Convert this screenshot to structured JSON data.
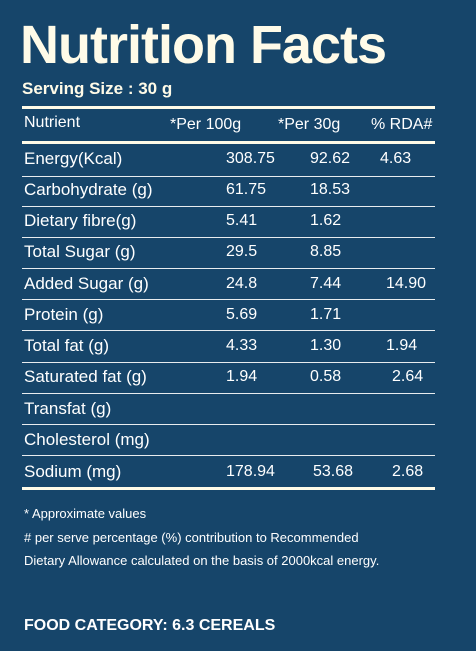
{
  "title": "Nutrition Facts",
  "serving_size": "Serving Size : 30 g",
  "table": {
    "headers": [
      "Nutrient",
      "*Per 100g",
      "*Per 30g",
      "% RDA#"
    ],
    "rows": [
      {
        "nutrient": "Energy(Kcal)",
        "per100": "308.75",
        "per30": "92.62",
        "rda": "4.63"
      },
      {
        "nutrient": "Carbohydrate (g)",
        "per100": "61.75",
        "per30": "18.53",
        "rda": ""
      },
      {
        "nutrient": "Dietary fibre(g)",
        "per100": "5.41",
        "per30": "1.62",
        "rda": ""
      },
      {
        "nutrient": "Total Sugar (g)",
        "per100": "29.5",
        "per30": "8.85",
        "rda": ""
      },
      {
        "nutrient": "Added Sugar (g)",
        "per100": "24.8",
        "per30": "7.44",
        "rda": "14.90"
      },
      {
        "nutrient": "Protein (g)",
        "per100": "5.69",
        "per30": "1.71",
        "rda": ""
      },
      {
        "nutrient": "Total fat (g)",
        "per100": "4.33",
        "per30": "1.30",
        "rda": "1.94"
      },
      {
        "nutrient": "Saturated fat (g)",
        "per100": "1.94",
        "per30": "0.58",
        "rda": "2.64"
      },
      {
        "nutrient": "Transfat (g)",
        "per100": "",
        "per30": "",
        "rda": ""
      },
      {
        "nutrient": "Cholesterol (mg)",
        "per100": "",
        "per30": "",
        "rda": ""
      },
      {
        "nutrient": "Sodium (mg)",
        "per100": "178.94",
        "per30": "53.68",
        "rda": "2.68"
      }
    ]
  },
  "footnotes": [
    "* Approximate values",
    "# per serve percentage (%) contribution to Recommended",
    "Dietary Allowance calculated on the basis of 2000kcal energy."
  ],
  "food_category": "FOOD CATEGORY: 6.3 CEREALS",
  "colors": {
    "background": "#16456a",
    "text": "#ffffff",
    "title": "#fffbe8"
  }
}
